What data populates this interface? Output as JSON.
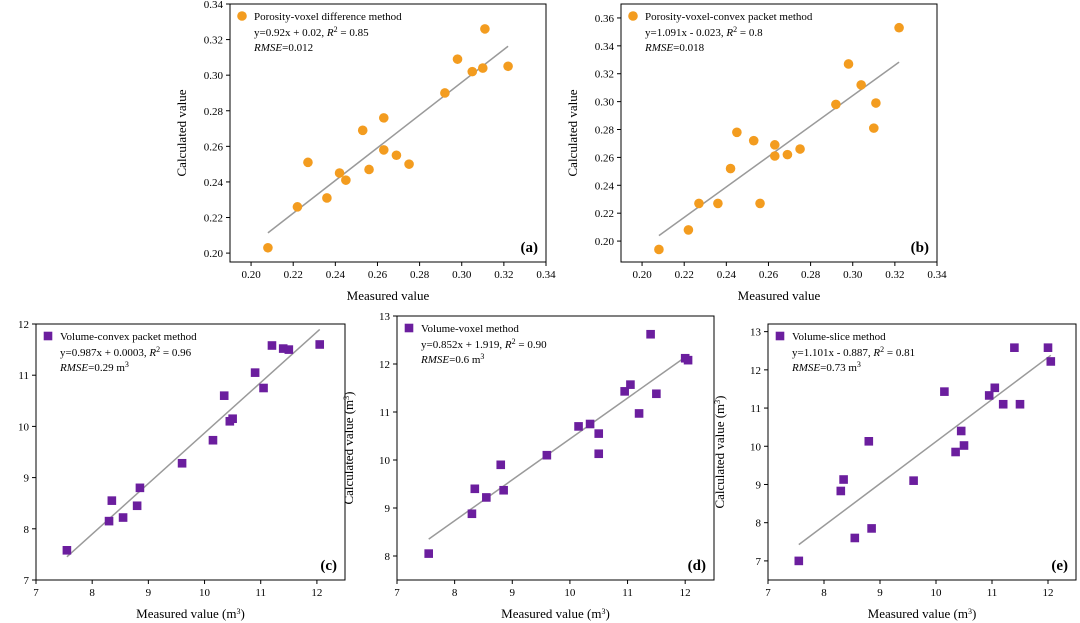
{
  "figure": {
    "colors": {
      "orange": "#F39C1F",
      "purple": "#6B1E9E",
      "fit_line": "#9A9A9A"
    },
    "marker_names": {
      "circle": "orange-circle-marker",
      "square": "purple-square-marker"
    }
  },
  "chart_data": [
    {
      "type": "scatter",
      "panel": "(a)",
      "marker": "circle",
      "color": "#F39C1F",
      "legend": "Porosity-voxel difference method",
      "equation_parts": [
        "y=0.92x + 0.02, ",
        "R",
        "2",
        " = 0.85"
      ],
      "rmse_parts": [
        "RMSE",
        "=0.012"
      ],
      "xlabel": "Measured value",
      "ylabel": "Calculated value",
      "xlim": [
        0.19,
        0.34
      ],
      "ylim": [
        0.195,
        0.34
      ],
      "xticks": [
        0.2,
        0.22,
        0.24,
        0.26,
        0.28,
        0.3,
        0.32,
        0.34
      ],
      "yticks": [
        0.2,
        0.22,
        0.24,
        0.26,
        0.28,
        0.3,
        0.32,
        0.34
      ],
      "tick_decimals": 2,
      "fit": {
        "slope": 0.92,
        "intercept": 0.02,
        "x_range": [
          0.208,
          0.322
        ]
      },
      "points": [
        {
          "x": 0.208,
          "y": 0.203
        },
        {
          "x": 0.222,
          "y": 0.226
        },
        {
          "x": 0.227,
          "y": 0.251
        },
        {
          "x": 0.236,
          "y": 0.231
        },
        {
          "x": 0.242,
          "y": 0.245
        },
        {
          "x": 0.245,
          "y": 0.241
        },
        {
          "x": 0.253,
          "y": 0.269
        },
        {
          "x": 0.256,
          "y": 0.247
        },
        {
          "x": 0.263,
          "y": 0.276
        },
        {
          "x": 0.263,
          "y": 0.258
        },
        {
          "x": 0.269,
          "y": 0.255
        },
        {
          "x": 0.275,
          "y": 0.25
        },
        {
          "x": 0.292,
          "y": 0.29
        },
        {
          "x": 0.298,
          "y": 0.309
        },
        {
          "x": 0.305,
          "y": 0.302
        },
        {
          "x": 0.31,
          "y": 0.304
        },
        {
          "x": 0.311,
          "y": 0.326
        },
        {
          "x": 0.322,
          "y": 0.305
        }
      ]
    },
    {
      "type": "scatter",
      "panel": "(b)",
      "marker": "circle",
      "color": "#F39C1F",
      "legend": "Porosity-voxel-convex packet method",
      "equation_parts": [
        "y=1.091x - 0.023, ",
        "R",
        "2",
        " = 0.8"
      ],
      "rmse_parts": [
        "RMSE",
        "=0.018"
      ],
      "xlabel": "Measured value",
      "ylabel": "Calculated value",
      "xlim": [
        0.19,
        0.34
      ],
      "ylim": [
        0.185,
        0.37
      ],
      "xticks": [
        0.2,
        0.22,
        0.24,
        0.26,
        0.28,
        0.3,
        0.32,
        0.34
      ],
      "yticks": [
        0.2,
        0.22,
        0.24,
        0.26,
        0.28,
        0.3,
        0.32,
        0.34,
        0.36
      ],
      "tick_decimals": 2,
      "fit": {
        "slope": 1.091,
        "intercept": -0.023,
        "x_range": [
          0.208,
          0.322
        ]
      },
      "points": [
        {
          "x": 0.208,
          "y": 0.194
        },
        {
          "x": 0.222,
          "y": 0.208
        },
        {
          "x": 0.227,
          "y": 0.227
        },
        {
          "x": 0.236,
          "y": 0.227
        },
        {
          "x": 0.242,
          "y": 0.252
        },
        {
          "x": 0.245,
          "y": 0.278
        },
        {
          "x": 0.253,
          "y": 0.272
        },
        {
          "x": 0.256,
          "y": 0.227
        },
        {
          "x": 0.263,
          "y": 0.269
        },
        {
          "x": 0.263,
          "y": 0.261
        },
        {
          "x": 0.269,
          "y": 0.262
        },
        {
          "x": 0.275,
          "y": 0.266
        },
        {
          "x": 0.292,
          "y": 0.298
        },
        {
          "x": 0.298,
          "y": 0.327
        },
        {
          "x": 0.304,
          "y": 0.312
        },
        {
          "x": 0.31,
          "y": 0.281
        },
        {
          "x": 0.311,
          "y": 0.299
        },
        {
          "x": 0.322,
          "y": 0.353
        }
      ]
    },
    {
      "type": "scatter",
      "panel": "(c)",
      "marker": "square",
      "color": "#6B1E9E",
      "legend": "Volume-convex packet method",
      "equation_parts": [
        "y=0.987x + 0.0003, ",
        "R",
        "2",
        " = 0.96"
      ],
      "rmse_parts": [
        "RMSE",
        "=0.29 m",
        "3"
      ],
      "xlabel_parts": [
        "Measured value (m",
        "3",
        ")"
      ],
      "ylabel_parts": [
        "Calculated value (m",
        "3",
        ")"
      ],
      "xlim": [
        7,
        12.5
      ],
      "ylim": [
        7,
        12
      ],
      "xticks": [
        7,
        8,
        9,
        10,
        11,
        12
      ],
      "yticks": [
        7,
        8,
        9,
        10,
        11,
        12
      ],
      "tick_decimals": 0,
      "fit": {
        "slope": 0.987,
        "intercept": 0.0003,
        "x_range": [
          7.55,
          12.05
        ]
      },
      "points": [
        {
          "x": 7.55,
          "y": 7.58
        },
        {
          "x": 8.3,
          "y": 8.15
        },
        {
          "x": 8.35,
          "y": 8.55
        },
        {
          "x": 8.55,
          "y": 8.22
        },
        {
          "x": 8.8,
          "y": 8.45
        },
        {
          "x": 8.85,
          "y": 8.8
        },
        {
          "x": 9.6,
          "y": 9.28
        },
        {
          "x": 10.15,
          "y": 9.73
        },
        {
          "x": 10.35,
          "y": 10.6
        },
        {
          "x": 10.45,
          "y": 10.1
        },
        {
          "x": 10.5,
          "y": 10.15
        },
        {
          "x": 10.9,
          "y": 11.05
        },
        {
          "x": 11.05,
          "y": 10.75
        },
        {
          "x": 11.2,
          "y": 11.58
        },
        {
          "x": 11.4,
          "y": 11.52
        },
        {
          "x": 11.5,
          "y": 11.5
        },
        {
          "x": 12.05,
          "y": 11.6
        }
      ]
    },
    {
      "type": "scatter",
      "panel": "(d)",
      "marker": "square",
      "color": "#6B1E9E",
      "legend": "Volume-voxel method",
      "equation_parts": [
        "y=0.852x + 1.919, ",
        "R",
        "2",
        " = 0.90"
      ],
      "rmse_parts": [
        "RMSE",
        "=0.6 m",
        "3"
      ],
      "xlabel_parts": [
        "Measured value (m",
        "3",
        ")"
      ],
      "ylabel_parts": [
        "Calculated value (m",
        "3",
        ")"
      ],
      "xlim": [
        7,
        12.5
      ],
      "ylim": [
        7.5,
        13
      ],
      "xticks": [
        7,
        8,
        9,
        10,
        11,
        12
      ],
      "yticks": [
        8,
        9,
        10,
        11,
        12,
        13
      ],
      "tick_decimals": 0,
      "fit": {
        "slope": 0.852,
        "intercept": 1.919,
        "x_range": [
          7.55,
          12.05
        ]
      },
      "points": [
        {
          "x": 7.55,
          "y": 8.05
        },
        {
          "x": 8.3,
          "y": 8.88
        },
        {
          "x": 8.35,
          "y": 9.4
        },
        {
          "x": 8.55,
          "y": 9.22
        },
        {
          "x": 8.8,
          "y": 9.9
        },
        {
          "x": 8.85,
          "y": 9.37
        },
        {
          "x": 9.6,
          "y": 10.1
        },
        {
          "x": 10.15,
          "y": 10.7
        },
        {
          "x": 10.35,
          "y": 10.75
        },
        {
          "x": 10.5,
          "y": 10.13
        },
        {
          "x": 10.5,
          "y": 10.55
        },
        {
          "x": 10.95,
          "y": 11.43
        },
        {
          "x": 11.05,
          "y": 11.57
        },
        {
          "x": 11.2,
          "y": 10.97
        },
        {
          "x": 11.4,
          "y": 12.62
        },
        {
          "x": 11.5,
          "y": 11.38
        },
        {
          "x": 12.0,
          "y": 12.12
        },
        {
          "x": 12.05,
          "y": 12.08
        }
      ]
    },
    {
      "type": "scatter",
      "panel": "(e)",
      "marker": "square",
      "color": "#6B1E9E",
      "legend": "Volume-slice method",
      "equation_parts": [
        "y=1.101x - 0.887, ",
        "R",
        "2",
        " = 0.81"
      ],
      "rmse_parts": [
        "RMSE",
        "=0.73 m",
        "3"
      ],
      "xlabel_parts": [
        "Measured value (m",
        "3",
        ")"
      ],
      "ylabel_parts": [
        "Calculated value (m",
        "3",
        ")"
      ],
      "xlim": [
        7,
        12.5
      ],
      "ylim": [
        6.5,
        13.2
      ],
      "xticks": [
        7,
        8,
        9,
        10,
        11,
        12
      ],
      "yticks": [
        7,
        8,
        9,
        10,
        11,
        12,
        13
      ],
      "tick_decimals": 0,
      "fit": {
        "slope": 1.101,
        "intercept": -0.887,
        "x_range": [
          7.55,
          12.05
        ]
      },
      "points": [
        {
          "x": 7.55,
          "y": 7.0
        },
        {
          "x": 8.3,
          "y": 8.83
        },
        {
          "x": 8.35,
          "y": 9.13
        },
        {
          "x": 8.55,
          "y": 7.6
        },
        {
          "x": 8.8,
          "y": 10.13
        },
        {
          "x": 8.85,
          "y": 7.85
        },
        {
          "x": 9.6,
          "y": 9.1
        },
        {
          "x": 10.15,
          "y": 11.43
        },
        {
          "x": 10.35,
          "y": 9.85
        },
        {
          "x": 10.45,
          "y": 10.4
        },
        {
          "x": 10.5,
          "y": 10.02
        },
        {
          "x": 10.95,
          "y": 11.33
        },
        {
          "x": 11.05,
          "y": 11.53
        },
        {
          "x": 11.2,
          "y": 11.1
        },
        {
          "x": 11.4,
          "y": 12.58
        },
        {
          "x": 11.5,
          "y": 11.1
        },
        {
          "x": 12.0,
          "y": 12.58
        },
        {
          "x": 12.05,
          "y": 12.22
        }
      ]
    }
  ]
}
